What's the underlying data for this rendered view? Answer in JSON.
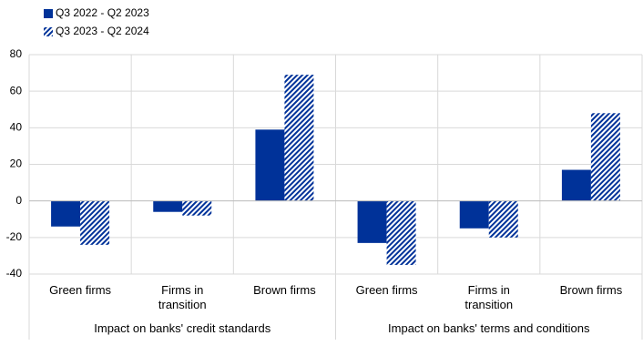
{
  "chart_data": {
    "type": "bar",
    "groups": [
      {
        "name": "Impact on banks' credit standards",
        "categories": [
          "Green firms",
          "Firms in transition",
          "Brown firms"
        ]
      },
      {
        "name": "Impact on banks' terms and conditions",
        "categories": [
          "Green firms",
          "Firms in transition",
          "Brown firms"
        ]
      }
    ],
    "series": [
      {
        "name": "Q3 2022 - Q2 2023",
        "color": "#003299",
        "pattern": "solid",
        "values": [
          -14,
          -6,
          39,
          -23,
          -15,
          17
        ]
      },
      {
        "name": "Q3 2023 - Q2 2024",
        "color": "#003299",
        "pattern": "hatched",
        "values": [
          -24,
          -8,
          69,
          -35,
          -20,
          48
        ]
      }
    ],
    "ylim": [
      -40,
      80
    ],
    "yticks": [
      -40,
      -20,
      0,
      20,
      40,
      60,
      80
    ],
    "grid": true,
    "legend": "top-left"
  }
}
